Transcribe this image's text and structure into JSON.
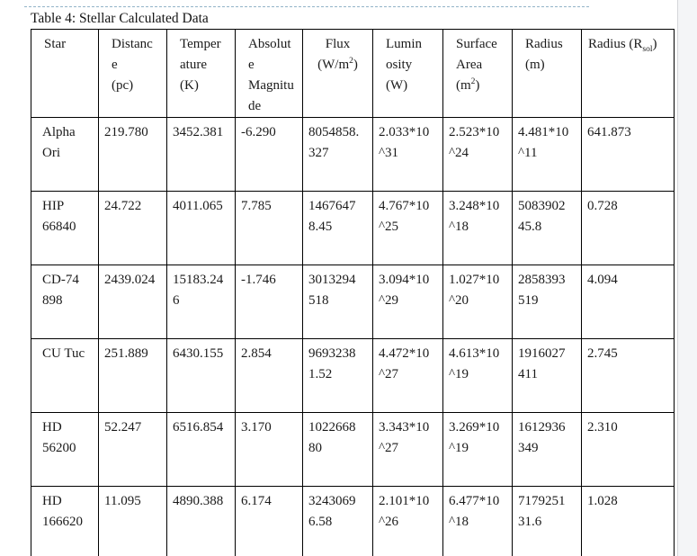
{
  "page": {
    "background": "#ffffff",
    "page_break_line_color": "#92b4c8",
    "text_color": "#1a1a1a",
    "table_border_color": "#000000",
    "scrollbar": {
      "track_color": "#f4f5f7",
      "border_color": "#d5d7da"
    }
  },
  "table": {
    "title": "Table 4: Stellar Calculated Data",
    "header_cells": [
      {
        "align": "left",
        "lines": [
          [
            "Star"
          ]
        ]
      },
      {
        "align": "left",
        "lines": [
          [
            "Distanc"
          ],
          [
            "e"
          ],
          [
            "(pc)"
          ]
        ]
      },
      {
        "align": "left",
        "lines": [
          [
            "Temper"
          ],
          [
            "ature"
          ],
          [
            "(K)"
          ]
        ]
      },
      {
        "align": "left",
        "lines": [
          [
            "Absolut"
          ],
          [
            "e"
          ],
          [
            "Magnitu"
          ],
          [
            "de"
          ]
        ]
      },
      {
        "align": "center",
        "lines": [
          [
            "Flux"
          ],
          [
            "(W/m",
            {
              "sup": "2"
            },
            ")"
          ]
        ]
      },
      {
        "align": "left",
        "lines": [
          [
            "Lumin"
          ],
          [
            "osity"
          ],
          [
            "(W)"
          ]
        ]
      },
      {
        "align": "left",
        "lines": [
          [
            "Surface"
          ],
          [
            "Area"
          ],
          [
            "(m",
            {
              "sup": "2"
            },
            ")"
          ]
        ]
      },
      {
        "align": "left",
        "lines": [
          [
            "Radius"
          ],
          [
            "(m)"
          ]
        ]
      },
      {
        "align": "tight",
        "lines": [
          [
            "Radius (R",
            {
              "sub": "sol"
            },
            ")"
          ]
        ]
      }
    ],
    "rows": [
      [
        "Alpha\nOri",
        "219.780",
        "3452.381",
        "-6.290",
        "8054858.\n327",
        "2.033*10\n^31",
        "2.523*10\n^24",
        "4.481*10\n^11",
        "641.873"
      ],
      [
        "HIP\n66840",
        "24.722",
        "4011.065",
        "7.785",
        "1467647\n8.45",
        "4.767*10\n^25",
        "3.248*10\n^18",
        "5083902\n45.8",
        "0.728"
      ],
      [
        "CD-74\n898",
        "2439.024",
        "15183.24\n6",
        "-1.746",
        "3013294\n518",
        "3.094*10\n^29",
        "1.027*10\n^20",
        "2858393\n519",
        "4.094"
      ],
      [
        "CU Tuc",
        "251.889",
        "6430.155",
        "2.854",
        "9693238\n1.52",
        "4.472*10\n^27",
        "4.613*10\n^19",
        "1916027\n411",
        "2.745"
      ],
      [
        "HD\n56200",
        "52.247",
        "6516.854",
        "3.170",
        "1022668\n80",
        "3.343*10\n^27",
        "3.269*10\n^19",
        "1612936\n349",
        "2.310"
      ],
      [
        "HD\n166620",
        "11.095",
        "4890.388",
        "6.174",
        "3243069\n6.58",
        "2.101*10\n^26",
        "6.477*10\n^18",
        "7179251\n31.6",
        "1.028"
      ]
    ]
  }
}
